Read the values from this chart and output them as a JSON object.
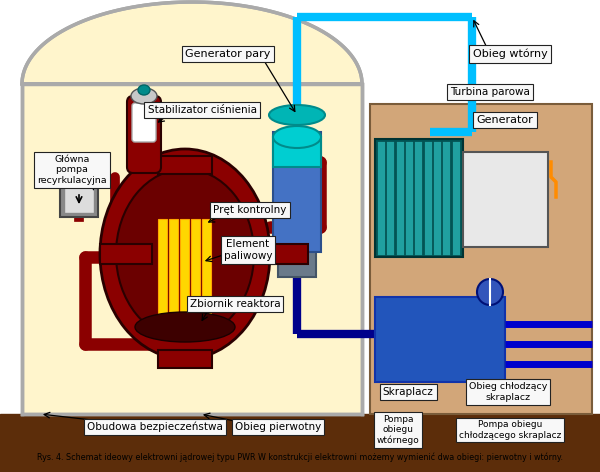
{
  "caption": "Rys. 4. Schemat ideowy elektrowni jądrowej typu PWR W konstrukcji elektrowni możemy wymienić dwa obiegi: pierwotny i wtórny.",
  "bg_white": "#FFFFFF",
  "containment_fill": "#FFF5CC",
  "containment_border": "#AAAAAA",
  "ground_color": "#5C2D0A",
  "reactor_outer": "#8B0000",
  "reactor_inner": "#6B0000",
  "reactor_core": "#3D0000",
  "fuel_yellow": "#FFD700",
  "fuel_orange": "#FFA500",
  "pipe_red": "#8B0000",
  "pipe_blue_dark": "#00008B",
  "pipe_cyan": "#00BFFF",
  "steam_gen_body": "#4472C4",
  "steam_gen_top": "#00CED1",
  "stabilizer_red": "#8B0000",
  "stabilizer_gray": "#C8C8C8",
  "stabilizer_white": "#FFFFFF",
  "pump_gray": "#888888",
  "pump_white": "#DDDDDD",
  "sec_building": "#D2A679",
  "sec_building_border": "#7A5C3A",
  "turbine_teal": "#008080",
  "turbine_light": "#20A0A0",
  "generator_fill": "#E8E8E8",
  "generator_border": "#555555",
  "condenser_blue": "#2255BB",
  "condenser_dark": "#1133AA",
  "cooling_pipe": "#0000CC",
  "label_fill": "#F8F8F8",
  "label_border": "#222222",
  "orange_spark": "#FF8C00",
  "labels": {
    "generator_pary": "Generator pary",
    "stabilizator": "Stabilizator ciśnienia",
    "glowna_pompa": "Główna\npompa\nrecyrkulacyjna",
    "pret_kontrolny": "Pręt kontrolny",
    "element_paliwowy": "Element\npaliwowy",
    "zbiornik_reaktora": "Zbiornik reaktora",
    "obudowa": "Obudowa bezpieczeństwa",
    "obieg_pierwotny": "Obieg pierwotny",
    "obieg_wtorny": "Obieg wtórny",
    "turbina_parowa": "Turbina parowa",
    "generator": "Generator",
    "skraplacz": "Skraplacz",
    "obieg_chlodzacy": "Obieg chłodzący\nskraplacz",
    "pompa_obiegu_wtornego": "Pompa\nobiegu\nwtórnego",
    "pompa_chlodzacego": "Pompa obiegu\nchłodzącego skraplacz"
  }
}
